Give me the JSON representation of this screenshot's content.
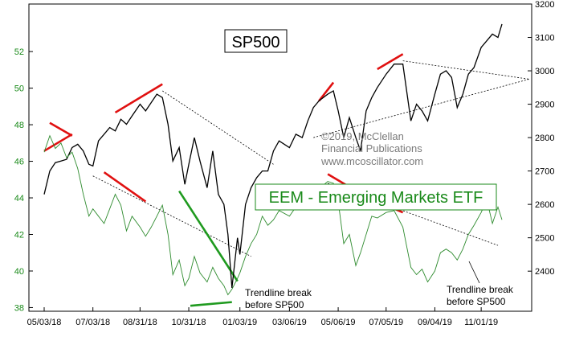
{
  "chart_data": [
    {
      "type": "line",
      "name": "SP500",
      "title": "SP500",
      "axis": "right",
      "ylim": [
        2280,
        3200
      ],
      "yticks": [
        2400,
        2500,
        2600,
        2700,
        2800,
        2900,
        3000,
        3100,
        3200
      ],
      "x": [
        "2018-05-03",
        "2018-05-10",
        "2018-05-17",
        "2018-05-24",
        "2018-05-31",
        "2018-06-07",
        "2018-06-14",
        "2018-06-21",
        "2018-06-28",
        "2018-07-03",
        "2018-07-10",
        "2018-07-17",
        "2018-07-24",
        "2018-07-31",
        "2018-08-07",
        "2018-08-14",
        "2018-08-21",
        "2018-08-31",
        "2018-09-07",
        "2018-09-14",
        "2018-09-21",
        "2018-09-28",
        "2018-10-05",
        "2018-10-11",
        "2018-10-19",
        "2018-10-26",
        "2018-10-31",
        "2018-11-07",
        "2018-11-14",
        "2018-11-23",
        "2018-11-30",
        "2018-12-07",
        "2018-12-14",
        "2018-12-19",
        "2018-12-24",
        "2018-12-31",
        "2019-01-03",
        "2019-01-10",
        "2019-01-17",
        "2019-01-24",
        "2019-01-31",
        "2019-02-07",
        "2019-02-14",
        "2019-02-21",
        "2019-03-06",
        "2019-03-14",
        "2019-03-22",
        "2019-03-29",
        "2019-04-05",
        "2019-04-12",
        "2019-04-23",
        "2019-04-30",
        "2019-05-06",
        "2019-05-13",
        "2019-05-20",
        "2019-05-28",
        "2019-06-03",
        "2019-06-10",
        "2019-06-17",
        "2019-06-24",
        "2019-07-05",
        "2019-07-15",
        "2019-07-26",
        "2019-08-05",
        "2019-08-12",
        "2019-08-19",
        "2019-08-26",
        "2019-09-04",
        "2019-09-11",
        "2019-09-18",
        "2019-09-25",
        "2019-10-02",
        "2019-10-09",
        "2019-10-16",
        "2019-10-23",
        "2019-11-01",
        "2019-11-08",
        "2019-11-15",
        "2019-11-22",
        "2019-11-27"
      ],
      "values": [
        2630,
        2700,
        2725,
        2730,
        2735,
        2770,
        2780,
        2760,
        2720,
        2715,
        2790,
        2810,
        2830,
        2820,
        2855,
        2840,
        2865,
        2900,
        2880,
        2905,
        2930,
        2920,
        2840,
        2730,
        2770,
        2660,
        2720,
        2800,
        2730,
        2650,
        2760,
        2630,
        2600,
        2510,
        2350,
        2500,
        2450,
        2600,
        2650,
        2680,
        2700,
        2700,
        2760,
        2790,
        2770,
        2810,
        2800,
        2850,
        2890,
        2910,
        2930,
        2940,
        2880,
        2800,
        2860,
        2800,
        2760,
        2880,
        2920,
        2950,
        2990,
        3020,
        3020,
        2850,
        2900,
        2880,
        2850,
        2930,
        2990,
        3000,
        2980,
        2890,
        2930,
        2990,
        3010,
        3070,
        3090,
        3110,
        3100,
        3140
      ]
    },
    {
      "type": "line",
      "name": "EEM - Emerging Markets ETF",
      "title": "EEM - Emerging Markets ETF",
      "axis": "left",
      "ylim": [
        37.8,
        54.6
      ],
      "yticks": [
        38,
        40,
        42,
        44,
        46,
        48,
        50,
        52
      ],
      "x": [
        "2018-05-03",
        "2018-05-10",
        "2018-05-17",
        "2018-05-24",
        "2018-05-31",
        "2018-06-07",
        "2018-06-14",
        "2018-06-21",
        "2018-06-28",
        "2018-07-03",
        "2018-07-10",
        "2018-07-17",
        "2018-07-24",
        "2018-07-31",
        "2018-08-07",
        "2018-08-14",
        "2018-08-21",
        "2018-08-31",
        "2018-09-07",
        "2018-09-14",
        "2018-09-21",
        "2018-09-28",
        "2018-10-05",
        "2018-10-11",
        "2018-10-19",
        "2018-10-26",
        "2018-10-31",
        "2018-11-07",
        "2018-11-14",
        "2018-11-23",
        "2018-11-30",
        "2018-12-07",
        "2018-12-14",
        "2018-12-19",
        "2018-12-24",
        "2018-12-31",
        "2019-01-03",
        "2019-01-10",
        "2019-01-17",
        "2019-01-24",
        "2019-01-31",
        "2019-02-07",
        "2019-02-14",
        "2019-02-21",
        "2019-03-06",
        "2019-03-14",
        "2019-03-22",
        "2019-03-29",
        "2019-04-05",
        "2019-04-12",
        "2019-04-23",
        "2019-04-30",
        "2019-05-06",
        "2019-05-13",
        "2019-05-20",
        "2019-05-28",
        "2019-06-03",
        "2019-06-10",
        "2019-06-17",
        "2019-06-24",
        "2019-07-05",
        "2019-07-15",
        "2019-07-26",
        "2019-08-05",
        "2019-08-12",
        "2019-08-19",
        "2019-08-26",
        "2019-09-04",
        "2019-09-11",
        "2019-09-18",
        "2019-09-25",
        "2019-10-02",
        "2019-10-09",
        "2019-10-16",
        "2019-10-23",
        "2019-11-01",
        "2019-11-08",
        "2019-11-15",
        "2019-11-22",
        "2019-11-27"
      ],
      "values": [
        46.5,
        47.4,
        46.7,
        47.0,
        46.2,
        46.5,
        45.6,
        44.2,
        43.0,
        43.4,
        43.0,
        42.6,
        43.4,
        44.2,
        43.6,
        42.2,
        43.0,
        42.4,
        41.9,
        42.4,
        43.0,
        43.6,
        42.0,
        39.8,
        40.6,
        39.2,
        39.6,
        40.8,
        39.9,
        39.4,
        40.2,
        39.6,
        39.2,
        38.7,
        39.0,
        39.6,
        39.9,
        40.8,
        41.5,
        42.0,
        43.0,
        42.5,
        42.8,
        43.3,
        43.0,
        43.5,
        43.6,
        43.8,
        44.2,
        44.5,
        44.9,
        44.8,
        43.8,
        41.5,
        42.0,
        40.3,
        41.0,
        42.0,
        43.0,
        42.9,
        43.2,
        43.3,
        42.4,
        40.2,
        39.8,
        40.1,
        39.4,
        40.0,
        41.0,
        41.2,
        41.0,
        40.6,
        41.2,
        42.0,
        42.5,
        43.2,
        43.9,
        42.6,
        43.5,
        42.8
      ]
    }
  ],
  "labels": {
    "sp_title": "SP500",
    "eem_title": "EEM - Emerging Markets ETF",
    "copyright_1": "©2019, McClellan",
    "copyright_2": "Financial Publications",
    "copyright_3": "www.mcoscillator.com",
    "annotation_left_1": "Trendline break",
    "annotation_left_2": "before SP500",
    "annotation_right_1": "Trendline break",
    "annotation_right_2": "before SP500"
  },
  "x_tick_labels": [
    "05/03/18",
    "07/03/18",
    "08/31/18",
    "10/31/18",
    "01/03/19",
    "03/06/19",
    "05/06/19",
    "07/05/19",
    "09/04/19",
    "11/01/19"
  ],
  "x_ticks": [
    "2018-05-03",
    "2018-07-03",
    "2018-08-31",
    "2018-10-31",
    "2019-01-03",
    "2019-03-06",
    "2019-05-06",
    "2019-07-05",
    "2019-09-04",
    "2019-11-01"
  ],
  "colors": {
    "sp_line": "#000000",
    "eem_line": "#2e8b2e",
    "eem_label": "#1a8a1a",
    "red_marks": "#e01010",
    "green_marks": "#1f9a1f",
    "copyright_text": "#7a7a7a",
    "frame": "#000000"
  }
}
